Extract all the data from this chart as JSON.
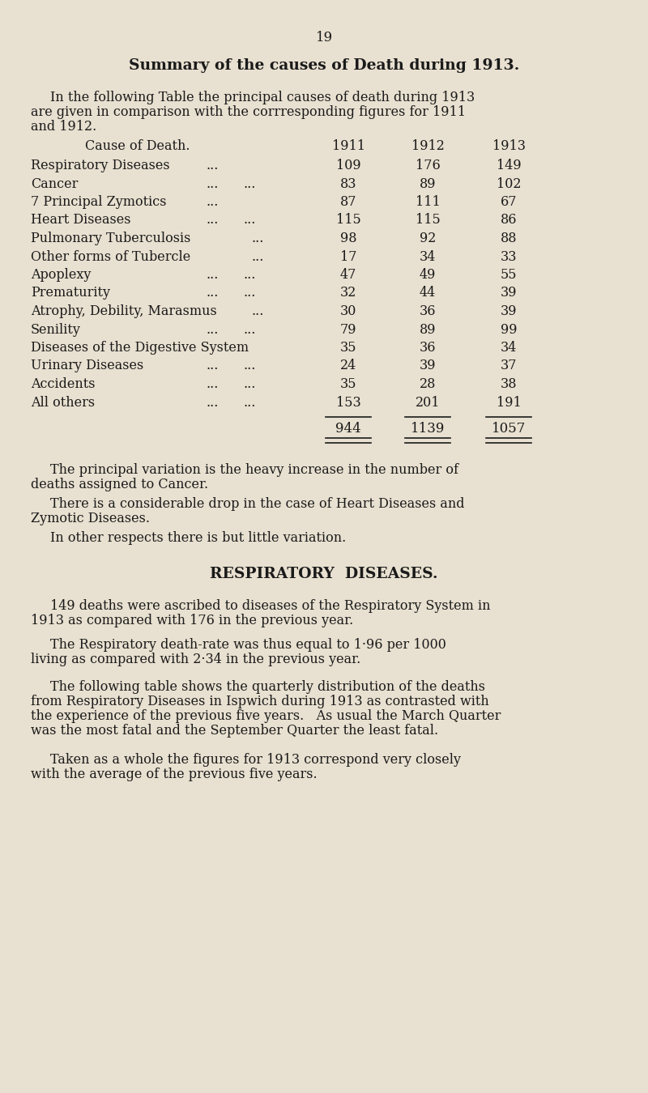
{
  "page_number": "19",
  "background_color": "#e8e0d0",
  "text_color": "#1a1a1a",
  "title": "Summary of the causes of Death during 1913.",
  "table_data": [
    {
      "cause": "Respiratory Diseases",
      "dots1": "...",
      "dots2": "",
      "y1911": "109",
      "y1912": "176",
      "y1913": "149"
    },
    {
      "cause": "Cancer",
      "dots1": "...",
      "dots2": "...",
      "y1911": "83",
      "y1912": "89",
      "y1913": "102"
    },
    {
      "cause": "7 Principal Zymotics",
      "dots1": "...",
      "dots2": "",
      "y1911": "87",
      "y1912": "111",
      "y1913": "67"
    },
    {
      "cause": "Heart Diseases",
      "dots1": "...",
      "dots2": "...",
      "y1911": "115",
      "y1912": "115",
      "y1913": "86"
    },
    {
      "cause": "Pulmonary Tuberculosis",
      "dots1": "...",
      "dots2": "",
      "y1911": "98",
      "y1912": "92",
      "y1913": "88"
    },
    {
      "cause": "Other forms of Tubercle",
      "dots1": "...",
      "dots2": "",
      "y1911": "17",
      "y1912": "34",
      "y1913": "33"
    },
    {
      "cause": "Apoplexy",
      "dots1": "...",
      "dots2": "...",
      "y1911": "47",
      "y1912": "49",
      "y1913": "55"
    },
    {
      "cause": "Prematurity",
      "dots1": "...",
      "dots2": "...",
      "y1911": "32",
      "y1912": "44",
      "y1913": "39"
    },
    {
      "cause": "Atrophy, Debility, Marasmus",
      "dots1": "...",
      "dots2": "",
      "y1911": "30",
      "y1912": "36",
      "y1913": "39"
    },
    {
      "cause": "Senility",
      "dots1": "...",
      "dots2": "...",
      "y1911": "79",
      "y1912": "89",
      "y1913": "99"
    },
    {
      "cause": "Diseases of the Digestive System",
      "dots1": "",
      "dots2": "",
      "y1911": "35",
      "y1912": "36",
      "y1913": "34"
    },
    {
      "cause": "Urinary Diseases",
      "dots1": "...",
      "dots2": "...",
      "y1911": "24",
      "y1912": "39",
      "y1913": "37"
    },
    {
      "cause": "Accidents",
      "dots1": "...",
      "dots2": "...",
      "y1911": "35",
      "y1912": "28",
      "y1913": "38"
    },
    {
      "cause": "All others",
      "dots1": "...",
      "dots2": "...",
      "y1911": "153",
      "y1912": "201",
      "y1913": "191"
    }
  ],
  "totals": [
    "944",
    "1139",
    "1057"
  ],
  "section_title": "RESPIRATORY  DISEASES.",
  "mid_apostrophe": "·"
}
